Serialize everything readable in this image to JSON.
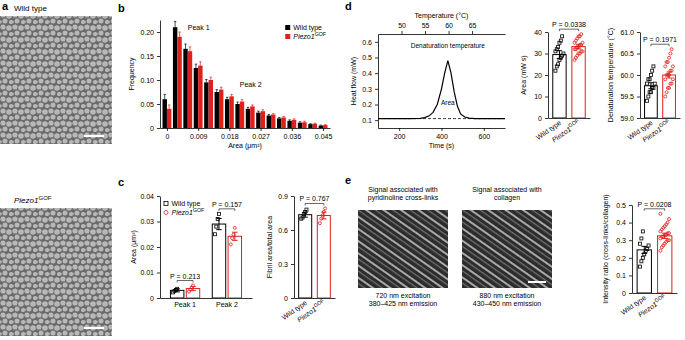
{
  "chart_data": [
    {
      "panel": "b",
      "type": "bar",
      "x": [
        0,
        0.003,
        0.006,
        0.009,
        0.012,
        0.015,
        0.018,
        0.021,
        0.024,
        0.027,
        0.03,
        0.033,
        0.036,
        0.039,
        0.042,
        0.045
      ],
      "xlim": [
        -0.002,
        0.047
      ],
      "xticks": [
        0,
        0.009,
        0.018,
        0.027,
        0.036,
        0.045
      ],
      "ylim": [
        0,
        0.225
      ],
      "yticks": [
        0,
        0.05,
        {
          "value": 0.1,
          "label": "0.10"
        },
        0.15,
        {
          "value": 0.2,
          "label": "0.20"
        }
      ],
      "xlabel": "Area (μm²)",
      "ylabel": "Frequency",
      "legend": "top-right",
      "series": [
        {
          "name": "Wild type",
          "color": "#000000",
          "values": [
            0.06,
            0.21,
            0.165,
            0.125,
            0.095,
            0.075,
            0.06,
            0.05,
            0.04,
            0.032,
            0.026,
            0.02,
            0.015,
            0.011,
            0.008,
            0.005
          ],
          "errors": [
            0.01,
            0.012,
            0.01,
            0.008,
            0.006,
            0.005,
            0.004,
            0.004,
            0.003,
            0.003,
            0.002,
            0.002,
            0.002,
            0.002,
            0.001,
            0.001
          ]
        },
        {
          "name": "Piezo1GOF",
          "color": "#e0201b",
          "values": [
            0.04,
            0.19,
            0.16,
            0.13,
            0.1,
            0.08,
            0.066,
            0.055,
            0.045,
            0.035,
            0.028,
            0.022,
            0.017,
            0.012,
            0.009,
            0.006
          ],
          "errors": [
            0.008,
            0.01,
            0.009,
            0.008,
            0.006,
            0.005,
            0.004,
            0.004,
            0.003,
            0.003,
            0.002,
            0.002,
            0.002,
            0.002,
            0.001,
            0.001
          ]
        }
      ],
      "annotations": [
        {
          "text": "Peak 1",
          "x": 0.006,
          "y": 0.205
        },
        {
          "text": "Peak 2",
          "x": 0.021,
          "y": 0.085
        }
      ]
    },
    {
      "panel": "c",
      "type": "bar",
      "categories": [
        "Peak 1",
        "Peak 2"
      ],
      "ylim": [
        0,
        0.04
      ],
      "yticks": [
        0,
        0.01,
        0.02,
        0.03,
        0.04
      ],
      "ylabel": "Area (μm²)",
      "legend": "top-left",
      "series": [
        {
          "name": "Wild type",
          "color": "#000000",
          "marker": "square",
          "values": [
            0.003,
            0.029
          ],
          "errors": [
            0.0006,
            0.0022
          ],
          "points": [
            [
              0.0022,
              0.0028,
              0.0031,
              0.0036
            ],
            [
              0.025,
              0.028,
              0.031,
              0.033
            ]
          ]
        },
        {
          "name": "Piezo1GOF",
          "color": "#e0201b",
          "marker": "circle",
          "values": [
            0.0037,
            0.0242
          ],
          "errors": [
            0.0008,
            0.0016
          ],
          "points": [
            [
              0.0025,
              0.0033,
              0.0041,
              0.0049
            ],
            [
              0.021,
              0.0235,
              0.0248,
              0.0275
            ]
          ]
        }
      ],
      "annotations": [
        {
          "text": "P = 0.213",
          "category": "Peak 1"
        },
        {
          "text": "P = 0.157",
          "category": "Peak 2"
        }
      ]
    },
    {
      "type": "bar",
      "categories": [
        "Wild type",
        "Piezo1GOF"
      ],
      "values": [
        0.735,
        0.728
      ],
      "errors": [
        0.022,
        0.03
      ],
      "colors": [
        "#000000",
        "#e0201b"
      ],
      "markers": [
        "square",
        "circle"
      ],
      "points": [
        [
          0.7,
          0.71,
          0.74,
          0.76,
          0.78
        ],
        [
          0.66,
          0.7,
          0.73,
          0.76,
          0.79
        ]
      ],
      "ylim": [
        0,
        0.9
      ],
      "yticks": [
        0,
        0.3,
        0.6,
        0.9
      ],
      "ylabel": "Fibril area/total area",
      "annotations": [
        {
          "text": "P = 0.767"
        }
      ]
    },
    {
      "panel": "d",
      "type": "line",
      "x": [
        100,
        150,
        200,
        250,
        300,
        320,
        340,
        360,
        380,
        400,
        415,
        430,
        445,
        460,
        475,
        490,
        510,
        530,
        560,
        600,
        650,
        700
      ],
      "xlim": [
        100,
        700
      ],
      "xticks": [
        200,
        400,
        600
      ],
      "xlabel": "Time (s)",
      "x2lim": [
        45,
        72
      ],
      "x2ticks": [
        50,
        55,
        60,
        65
      ],
      "x2label": "Temperature (°C)",
      "ylim": [
        0.05,
        0.65
      ],
      "yticks": [
        0.1,
        0.2,
        0.3,
        0.4,
        0.5,
        0.6
      ],
      "ylabel": "Heat flow (mW)",
      "series": [
        {
          "color": "#000000",
          "line_style": "solid",
          "values": [
            0.11,
            0.11,
            0.11,
            0.11,
            0.112,
            0.116,
            0.126,
            0.15,
            0.2,
            0.3,
            0.4,
            0.48,
            0.4,
            0.28,
            0.19,
            0.14,
            0.12,
            0.113,
            0.11,
            0.11,
            0.11,
            0.11
          ]
        },
        {
          "color": "#000000",
          "line_style": "dashed",
          "values": [
            0.11,
            0.11,
            0.11,
            0.11,
            0.11,
            0.11,
            0.11,
            0.11,
            0.11,
            0.11,
            0.11,
            0.11,
            0.11,
            0.11,
            0.11,
            0.11,
            0.11,
            0.11,
            0.11,
            0.11,
            0.11,
            0.11
          ]
        }
      ],
      "annotations": [
        {
          "text": "Denaturation temperature",
          "x": 430,
          "y": 0.56
        },
        {
          "text": "Area",
          "x": 430,
          "y": 0.2
        }
      ]
    },
    {
      "type": "bar",
      "categories": [
        "Wild type",
        "Piezo1GOF"
      ],
      "values": [
        29.5,
        33.2
      ],
      "errors": [
        1.8,
        1.1
      ],
      "colors": [
        "#000000",
        "#e0201b"
      ],
      "markers": [
        "square",
        "circle"
      ],
      "points": [
        [
          22,
          24,
          25,
          27,
          28,
          29,
          30,
          31,
          32,
          33,
          35,
          36,
          38
        ],
        [
          27,
          28,
          29,
          30,
          30,
          31,
          31,
          32,
          32,
          33,
          33,
          34,
          34,
          35,
          35,
          36,
          37,
          38,
          38,
          39
        ]
      ],
      "ylim": [
        0,
        40
      ],
      "yticks": [
        0,
        10,
        20,
        30,
        40
      ],
      "ylabel": "Area (mW s)",
      "annotations": [
        {
          "text": "P = 0.0338"
        }
      ]
    },
    {
      "type": "bar",
      "categories": [
        "Wild type",
        "Piezo1GOF"
      ],
      "values": [
        59.75,
        60.0
      ],
      "errors": [
        0.07,
        0.07
      ],
      "colors": [
        "#000000",
        "#e0201b"
      ],
      "markers": [
        "square",
        "circle"
      ],
      "points": [
        [
          59.4,
          59.5,
          59.6,
          59.6,
          59.7,
          59.7,
          59.8,
          59.8,
          59.9,
          59.9,
          60.0,
          60.1,
          60.2
        ],
        [
          59.5,
          59.6,
          59.7,
          59.7,
          59.8,
          59.8,
          59.9,
          59.9,
          60.0,
          60.0,
          60.0,
          60.1,
          60.1,
          60.2,
          60.2,
          60.3,
          60.3,
          60.4,
          60.5,
          60.6
        ]
      ],
      "ylim": [
        59.0,
        61.0
      ],
      "yticks": [
        {
          "value": 59,
          "label": "59.0"
        },
        59.5,
        {
          "value": 60,
          "label": "60.0"
        },
        60.5,
        {
          "value": 61,
          "label": "61.0"
        }
      ],
      "ylabel": "Denaturation temperature (°C)",
      "annotations": [
        {
          "text": "P = 0.1971"
        }
      ]
    },
    {
      "type": "bar",
      "categories": [
        "Wild type",
        "Piezo1GOF"
      ],
      "values": [
        0.245,
        0.325
      ],
      "errors": [
        0.02,
        0.015
      ],
      "colors": [
        "#000000",
        "#e0201b"
      ],
      "markers": [
        "square",
        "circle"
      ],
      "points": [
        [
          0.15,
          0.18,
          0.2,
          0.22,
          0.24,
          0.25,
          0.27,
          0.28,
          0.31,
          0.35
        ],
        [
          0.24,
          0.26,
          0.27,
          0.28,
          0.29,
          0.3,
          0.3,
          0.31,
          0.32,
          0.32,
          0.33,
          0.33,
          0.34,
          0.34,
          0.35,
          0.36,
          0.37,
          0.38,
          0.39,
          0.4,
          0.42,
          0.45
        ]
      ],
      "ylim": [
        0,
        0.5
      ],
      "yticks": [
        0,
        0.1,
        0.2,
        0.3,
        0.4,
        0.5
      ],
      "ylabel": "Intensity ratio (cross-links/collagen)",
      "annotations": [
        {
          "text": "P = 0.0208"
        }
      ]
    }
  ],
  "images": {
    "a": {
      "panel": "a",
      "labels": [
        "Wild type",
        "Piezo1GOF"
      ]
    },
    "e": {
      "panel": "e",
      "items": [
        {
          "title_lines": [
            "Signal associated with",
            "pyridinoline cross-links"
          ],
          "caption_lines": [
            "720 nm excitation",
            "380–425 nm emission"
          ]
        },
        {
          "title_lines": [
            "Signal associated with",
            "collagen"
          ],
          "caption_lines": [
            "880 nm excitation",
            "430–450 nm emission"
          ]
        }
      ]
    }
  }
}
